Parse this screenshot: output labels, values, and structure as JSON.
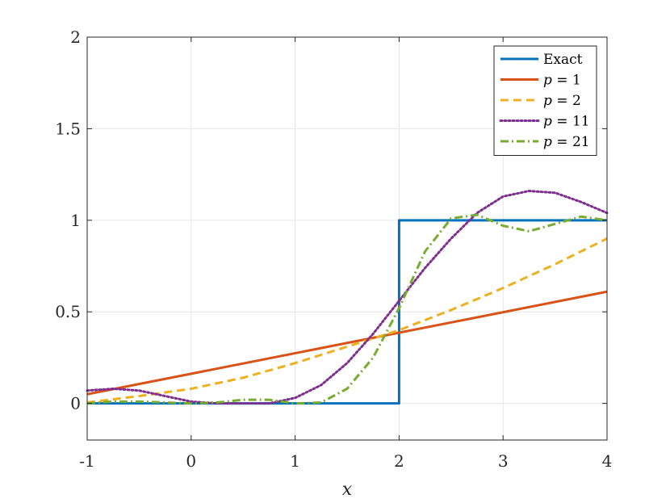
{
  "chart_data": {
    "type": "line",
    "xlabel": "x",
    "ylabel": "",
    "xlim": [
      -1,
      4
    ],
    "ylim": [
      -0.2,
      2
    ],
    "xticks": [
      -1,
      0,
      1,
      2,
      3,
      4
    ],
    "xtick_labels": [
      "-1",
      "0",
      "1",
      "2",
      "3",
      "4"
    ],
    "yticks": [
      0,
      0.5,
      1,
      1.5,
      2
    ],
    "ytick_labels": [
      "0",
      "0.5",
      "1",
      "1.5",
      "2"
    ],
    "grid": true,
    "legend_position": "top-right",
    "series": [
      {
        "name": "Exact",
        "color": "#0072BD",
        "dash": "solid",
        "x": [
          -1,
          2,
          2,
          4
        ],
        "y": [
          0,
          0,
          1,
          1
        ]
      },
      {
        "name": "p = 1",
        "legend": {
          "var": "p",
          "op": " = ",
          "val": "1"
        },
        "color": "#D95319",
        "dash": "solid",
        "x": [
          -1,
          4
        ],
        "y": [
          0.05,
          0.61
        ]
      },
      {
        "name": "p = 2",
        "legend": {
          "var": "p",
          "op": " = ",
          "val": "2"
        },
        "color": "#EDB120",
        "dash": "dashed",
        "x": [
          -1,
          -0.5,
          0,
          0.5,
          1,
          1.5,
          2,
          2.5,
          3,
          3.5,
          4
        ],
        "y": [
          0.005,
          0.04,
          0.08,
          0.14,
          0.22,
          0.31,
          0.4,
          0.51,
          0.63,
          0.76,
          0.9
        ]
      },
      {
        "name": "p = 11",
        "legend": {
          "var": "p",
          "op": " = ",
          "val": "11"
        },
        "color": "#7E2F8E",
        "dash": "dotted",
        "x": [
          -1,
          -0.75,
          -0.5,
          -0.25,
          0,
          0.25,
          0.5,
          0.75,
          1,
          1.25,
          1.5,
          1.75,
          2,
          2.25,
          2.5,
          2.75,
          3,
          3.25,
          3.5,
          3.75,
          4
        ],
        "y": [
          0.07,
          0.08,
          0.07,
          0.04,
          0.01,
          0.0,
          0.0,
          0.0,
          0.03,
          0.1,
          0.22,
          0.38,
          0.56,
          0.74,
          0.9,
          1.04,
          1.13,
          1.16,
          1.15,
          1.1,
          1.04
        ]
      },
      {
        "name": "p = 21",
        "legend": {
          "var": "p",
          "op": " = ",
          "val": "21"
        },
        "color": "#77AC30",
        "dash": "dashdot",
        "x": [
          -1,
          -0.75,
          -0.5,
          -0.25,
          0,
          0.25,
          0.5,
          0.75,
          1,
          1.25,
          1.5,
          1.75,
          2,
          2.25,
          2.5,
          2.75,
          3,
          3.25,
          3.5,
          3.75,
          4
        ],
        "y": [
          0.0,
          0.01,
          0.01,
          0.005,
          0.0,
          0.005,
          0.02,
          0.02,
          0.0,
          0.005,
          0.08,
          0.25,
          0.52,
          0.83,
          1.01,
          1.03,
          0.97,
          0.94,
          0.98,
          1.02,
          1.0
        ]
      }
    ]
  }
}
